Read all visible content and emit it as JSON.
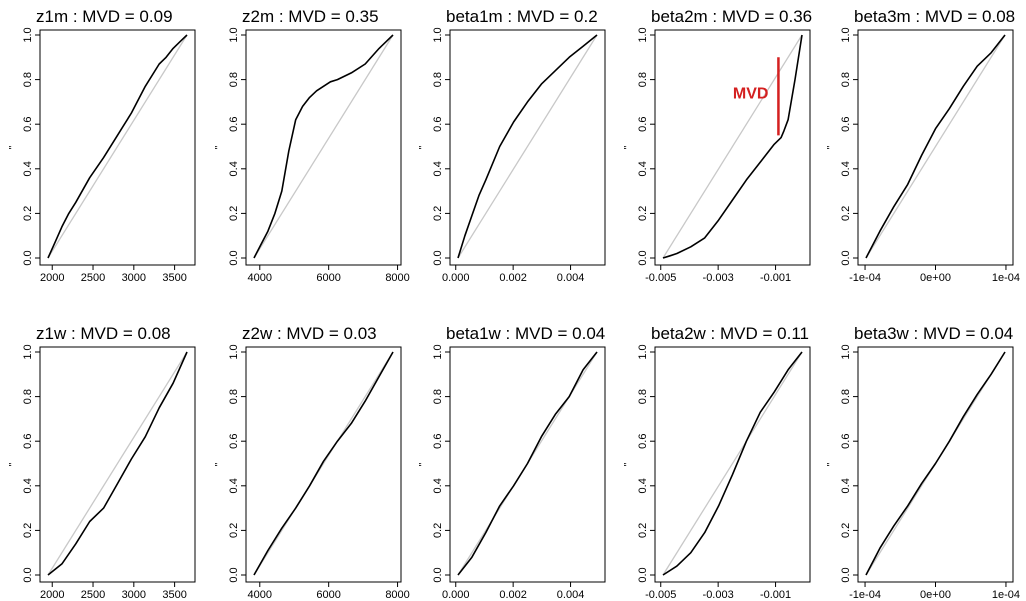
{
  "figure": {
    "layout": "2 rows x 5 columns",
    "ref_line_color": "#c8c8c8",
    "curve_color": "#000000",
    "highlight_color": "#d42020"
  },
  "chart_data": [
    {
      "type": "line",
      "title": "z1m :  MVD = 0.09",
      "ylabel": "\"",
      "xlim": [
        1850,
        3750
      ],
      "ylim": [
        0,
        1
      ],
      "xticks": [
        "2000",
        "2500",
        "3000",
        "3500"
      ],
      "xtick_values": [
        2000,
        2500,
        3000,
        3500
      ],
      "yticks": [
        "0.0",
        "0.2",
        "0.4",
        "0.6",
        "0.8",
        "1.0"
      ],
      "series": [
        {
          "values_x": [
            0,
            0.05,
            0.1,
            0.15,
            0.2,
            0.3,
            0.4,
            0.5,
            0.6,
            0.7,
            0.8,
            0.85,
            0.9,
            0.95,
            1.0
          ],
          "values_y": [
            0,
            0.07,
            0.14,
            0.2,
            0.25,
            0.36,
            0.45,
            0.55,
            0.65,
            0.77,
            0.87,
            0.9,
            0.94,
            0.97,
            1.0
          ]
        }
      ]
    },
    {
      "type": "line",
      "title": "z2m :  MVD = 0.35",
      "ylabel": "\"",
      "xlim": [
        3600,
        8100
      ],
      "ylim": [
        0,
        1
      ],
      "xticks": [
        "4000",
        "6000",
        "8000"
      ],
      "xtick_values": [
        4000,
        6000,
        8000
      ],
      "yticks": [
        "0.0",
        "0.2",
        "0.4",
        "0.6",
        "0.8",
        "1.0"
      ],
      "series": [
        {
          "values_x": [
            0,
            0.05,
            0.1,
            0.15,
            0.2,
            0.25,
            0.3,
            0.35,
            0.4,
            0.45,
            0.5,
            0.55,
            0.6,
            0.7,
            0.8,
            0.9,
            1.0
          ],
          "values_y": [
            0,
            0.06,
            0.12,
            0.2,
            0.3,
            0.48,
            0.62,
            0.68,
            0.72,
            0.75,
            0.77,
            0.79,
            0.8,
            0.83,
            0.87,
            0.94,
            1.0
          ]
        }
      ]
    },
    {
      "type": "line",
      "title": "beta1m :  MVD = 0.2",
      "ylabel": "\"",
      "xlim": [
        -0.0002,
        0.0052
      ],
      "ylim": [
        0,
        1
      ],
      "xticks": [
        "0.000",
        "0.002",
        "0.004"
      ],
      "xtick_values": [
        0,
        0.002,
        0.004
      ],
      "yticks": [
        "0.0",
        "0.2",
        "0.4",
        "0.6",
        "0.8",
        "1.0"
      ],
      "series": [
        {
          "values_x": [
            0,
            0.05,
            0.1,
            0.15,
            0.2,
            0.3,
            0.4,
            0.5,
            0.6,
            0.7,
            0.8,
            0.9,
            1.0
          ],
          "values_y": [
            0,
            0.1,
            0.19,
            0.28,
            0.35,
            0.5,
            0.61,
            0.7,
            0.78,
            0.84,
            0.9,
            0.95,
            1.0
          ]
        }
      ]
    },
    {
      "type": "line",
      "title": "beta2m :  MVD = 0.36",
      "ylabel": "\"",
      "xlim": [
        -0.0052,
        0.0002
      ],
      "ylim": [
        0,
        1
      ],
      "xticks": [
        "-0.005",
        "-0.003",
        "-0.001"
      ],
      "xtick_values": [
        -0.005,
        -0.003,
        -0.001
      ],
      "yticks": [
        "0.0",
        "0.2",
        "0.4",
        "0.6",
        "0.8",
        "1.0"
      ],
      "annotation": {
        "label": "MVD",
        "x": -0.0009,
        "y_from": 0.55,
        "y_to": 0.9
      },
      "series": [
        {
          "values_x": [
            0,
            0.05,
            0.1,
            0.2,
            0.3,
            0.4,
            0.5,
            0.6,
            0.7,
            0.8,
            0.85,
            0.87,
            0.9,
            0.95,
            1.0
          ],
          "values_y": [
            0,
            0.01,
            0.02,
            0.05,
            0.09,
            0.17,
            0.26,
            0.35,
            0.43,
            0.51,
            0.54,
            0.57,
            0.62,
            0.8,
            1.0
          ]
        }
      ]
    },
    {
      "type": "line",
      "title": "beta3m :  MVD = 0.08",
      "ylabel": "\"",
      "xlim": [
        -0.00011,
        0.00011
      ],
      "ylim": [
        0,
        1
      ],
      "xticks": [
        "-1e-04",
        "0e+00",
        "1e-04"
      ],
      "xtick_values": [
        -0.0001,
        0,
        0.0001
      ],
      "yticks": [
        "0.0",
        "0.2",
        "0.4",
        "0.6",
        "0.8",
        "1.0"
      ],
      "series": [
        {
          "values_x": [
            0,
            0.1,
            0.2,
            0.3,
            0.4,
            0.5,
            0.6,
            0.7,
            0.8,
            0.9,
            1.0
          ],
          "values_y": [
            0,
            0.12,
            0.23,
            0.33,
            0.46,
            0.58,
            0.67,
            0.77,
            0.86,
            0.92,
            1.0
          ]
        }
      ]
    },
    {
      "type": "line",
      "title": "z1w :  MVD = 0.08",
      "ylabel": "\"",
      "xlim": [
        1850,
        3750
      ],
      "ylim": [
        0,
        1
      ],
      "xticks": [
        "2000",
        "2500",
        "3000",
        "3500"
      ],
      "xtick_values": [
        2000,
        2500,
        3000,
        3500
      ],
      "yticks": [
        "0.0",
        "0.2",
        "0.4",
        "0.6",
        "0.8",
        "1.0"
      ],
      "series": [
        {
          "values_x": [
            0,
            0.1,
            0.2,
            0.3,
            0.4,
            0.5,
            0.6,
            0.7,
            0.8,
            0.9,
            1.0
          ],
          "values_y": [
            0,
            0.05,
            0.14,
            0.24,
            0.3,
            0.41,
            0.52,
            0.62,
            0.75,
            0.86,
            1.0
          ]
        }
      ]
    },
    {
      "type": "line",
      "title": "z2w :  MVD = 0.03",
      "ylabel": "\"",
      "xlim": [
        3600,
        8100
      ],
      "ylim": [
        0,
        1
      ],
      "xticks": [
        "4000",
        "6000",
        "8000"
      ],
      "xtick_values": [
        4000,
        6000,
        8000
      ],
      "yticks": [
        "0.0",
        "0.2",
        "0.4",
        "0.6",
        "0.8",
        "1.0"
      ],
      "series": [
        {
          "values_x": [
            0,
            0.1,
            0.2,
            0.3,
            0.4,
            0.5,
            0.6,
            0.7,
            0.8,
            0.9,
            1.0
          ],
          "values_y": [
            0,
            0.11,
            0.21,
            0.3,
            0.4,
            0.51,
            0.6,
            0.68,
            0.78,
            0.89,
            1.0
          ]
        }
      ]
    },
    {
      "type": "line",
      "title": "beta1w :  MVD = 0.04",
      "ylabel": "\"",
      "xlim": [
        -0.0002,
        0.0052
      ],
      "ylim": [
        0,
        1
      ],
      "xticks": [
        "0.000",
        "0.002",
        "0.004"
      ],
      "xtick_values": [
        0,
        0.002,
        0.004
      ],
      "yticks": [
        "0.0",
        "0.2",
        "0.4",
        "0.6",
        "0.8",
        "1.0"
      ],
      "series": [
        {
          "values_x": [
            0,
            0.1,
            0.2,
            0.3,
            0.4,
            0.5,
            0.6,
            0.7,
            0.8,
            0.9,
            1.0
          ],
          "values_y": [
            0,
            0.08,
            0.19,
            0.31,
            0.4,
            0.5,
            0.62,
            0.72,
            0.8,
            0.92,
            1.0
          ]
        }
      ]
    },
    {
      "type": "line",
      "title": "beta2w :  MVD = 0.11",
      "ylabel": "\"",
      "xlim": [
        -0.0052,
        0.0002
      ],
      "ylim": [
        0,
        1
      ],
      "xticks": [
        "-0.005",
        "-0.003",
        "-0.001"
      ],
      "xtick_values": [
        -0.005,
        -0.003,
        -0.001
      ],
      "yticks": [
        "0.0",
        "0.2",
        "0.4",
        "0.6",
        "0.8",
        "1.0"
      ],
      "series": [
        {
          "values_x": [
            0,
            0.1,
            0.2,
            0.3,
            0.4,
            0.5,
            0.6,
            0.7,
            0.8,
            0.9,
            1.0
          ],
          "values_y": [
            0,
            0.04,
            0.1,
            0.19,
            0.31,
            0.45,
            0.6,
            0.73,
            0.82,
            0.92,
            1.0
          ]
        }
      ]
    },
    {
      "type": "line",
      "title": "beta3w :  MVD = 0.04",
      "ylabel": "\"",
      "xlim": [
        -0.00011,
        0.00011
      ],
      "ylim": [
        0,
        1
      ],
      "xticks": [
        "-1e-04",
        "0e+00",
        "1e-04"
      ],
      "xtick_values": [
        -0.0001,
        0,
        0.0001
      ],
      "yticks": [
        "0.0",
        "0.2",
        "0.4",
        "0.6",
        "0.8",
        "1.0"
      ],
      "series": [
        {
          "values_x": [
            0,
            0.1,
            0.2,
            0.3,
            0.4,
            0.5,
            0.6,
            0.7,
            0.8,
            0.9,
            1.0
          ],
          "values_y": [
            0,
            0.12,
            0.22,
            0.31,
            0.41,
            0.5,
            0.6,
            0.71,
            0.81,
            0.9,
            1.0
          ]
        }
      ]
    }
  ]
}
